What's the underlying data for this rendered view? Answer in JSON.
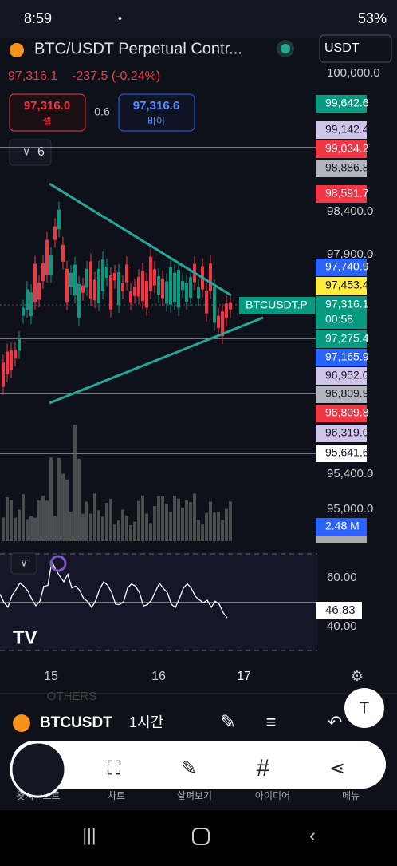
{
  "status_bar": {
    "time": "8:59",
    "battery": "53%"
  },
  "header": {
    "title": "BTC/USDT Perpetual Contr...",
    "currency": "USDT",
    "last_price": "97,316.1",
    "change": "-237.5 (-0.24%)"
  },
  "order": {
    "sell_price": "97,316.0",
    "sell_label": "셀",
    "spread": "0.6",
    "buy_price": "97,316.6",
    "buy_label": "바이"
  },
  "indicator_count": "6",
  "price_axis": [
    "100,000.0",
    "98,400.0",
    "97,900.0",
    "95,400.0",
    "95,000.0"
  ],
  "price_tags": [
    {
      "text": "99,642.6",
      "color": "#089981"
    },
    {
      "text": "99,142.4",
      "color": "#d1c4e9"
    },
    {
      "text": "99,034.2",
      "color": "#f23645"
    },
    {
      "text": "98,886.8",
      "color": "#b2b5be"
    },
    {
      "text": "98,591.7",
      "color": "#f23645"
    },
    {
      "text": "97,740.9",
      "color": "#2962ff"
    },
    {
      "text": "97,453.4",
      "color": "#ffeb3b"
    },
    {
      "text": "97,316.1",
      "color": "#089981"
    },
    {
      "text": "00:58",
      "color": "#089981"
    },
    {
      "text": "97,275.4",
      "color": "#089981"
    },
    {
      "text": "97,165.9",
      "color": "#2962ff"
    },
    {
      "text": "96,952.0",
      "color": "#d1c4e9"
    },
    {
      "text": "96,809.9",
      "color": "#b2b5be"
    },
    {
      "text": "96,809.8",
      "color": "#f23645"
    },
    {
      "text": "96,319.0",
      "color": "#d1c4e9"
    },
    {
      "text": "95,641.6",
      "color": "#ffffff"
    },
    {
      "text": "2.48 M",
      "color": "#2962ff"
    }
  ],
  "symbol_tag": "BTCUSDT.P",
  "rsi_axis": [
    "60.00",
    "40.00"
  ],
  "rsi_value": "46.83",
  "time_axis": [
    "15",
    "16",
    "17"
  ],
  "others": "OTHERS",
  "toolbar": {
    "symbol": "BTCUSDT",
    "interval": "1시간"
  },
  "bottom_tabs": [
    "왓치리스트",
    "차트",
    "살펴보기",
    "아이디어",
    "메뉴"
  ]
}
